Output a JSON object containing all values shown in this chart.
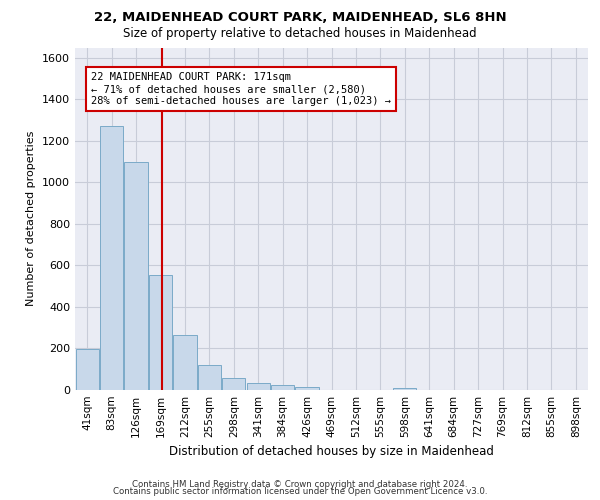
{
  "title_line1": "22, MAIDENHEAD COURT PARK, MAIDENHEAD, SL6 8HN",
  "title_line2": "Size of property relative to detached houses in Maidenhead",
  "xlabel": "Distribution of detached houses by size in Maidenhead",
  "ylabel": "Number of detached properties",
  "footer_line1": "Contains HM Land Registry data © Crown copyright and database right 2024.",
  "footer_line2": "Contains public sector information licensed under the Open Government Licence v3.0.",
  "bar_labels": [
    "41sqm",
    "83sqm",
    "126sqm",
    "169sqm",
    "212sqm",
    "255sqm",
    "298sqm",
    "341sqm",
    "384sqm",
    "426sqm",
    "469sqm",
    "512sqm",
    "555sqm",
    "598sqm",
    "641sqm",
    "684sqm",
    "727sqm",
    "769sqm",
    "812sqm",
    "855sqm",
    "898sqm"
  ],
  "bar_values": [
    197,
    1270,
    1100,
    555,
    265,
    120,
    57,
    33,
    22,
    14,
    0,
    0,
    0,
    12,
    0,
    0,
    0,
    0,
    0,
    0,
    0
  ],
  "bar_color": "#c8d8ea",
  "bar_edgecolor": "#7baac8",
  "grid_color": "#c8ccd8",
  "background_color": "#eaecf4",
  "ylim": [
    0,
    1650
  ],
  "yticks": [
    0,
    200,
    400,
    600,
    800,
    1000,
    1200,
    1400,
    1600
  ],
  "annotation_line1": "22 MAIDENHEAD COURT PARK: 171sqm",
  "annotation_line2": "← 71% of detached houses are smaller (2,580)",
  "annotation_line3": "28% of semi-detached houses are larger (1,023) →",
  "vline_color": "#cc0000",
  "annotation_box_facecolor": "#ffffff",
  "annotation_box_edgecolor": "#cc0000",
  "vline_x": 3.07
}
